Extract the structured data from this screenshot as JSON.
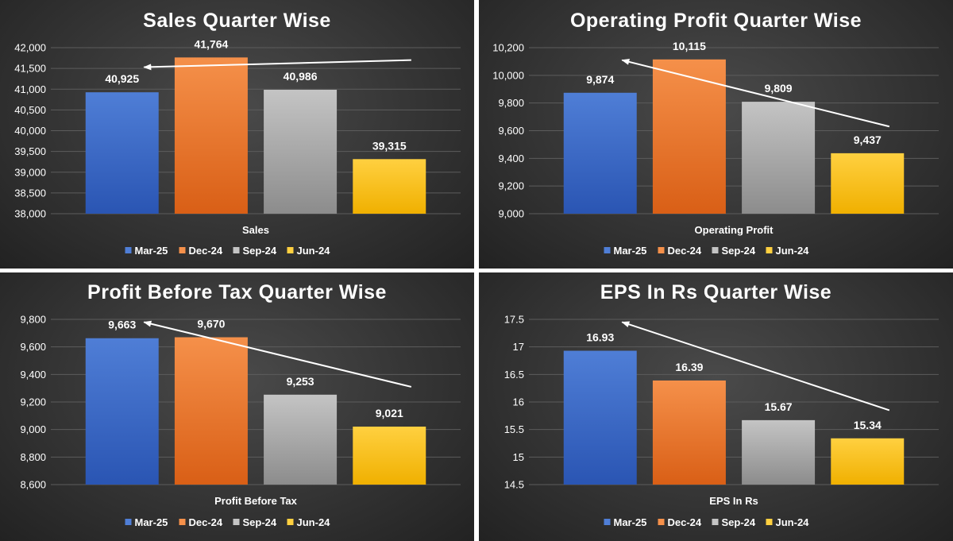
{
  "legend_categories": [
    "Mar-25",
    "Dec-24",
    "Sep-24",
    "Jun-24"
  ],
  "colors": {
    "Mar-25": [
      "#4f7ed6",
      "#2a55b3"
    ],
    "Dec-24": [
      "#f5904a",
      "#d95f16"
    ],
    "Sep-24": [
      "#c4c4c4",
      "#8c8c8c"
    ],
    "Jun-24": [
      "#ffd040",
      "#f0b000"
    ]
  },
  "chart_data": [
    {
      "type": "bar",
      "title": "Sales Quarter Wise",
      "xlabel": "Sales",
      "categories": [
        "Mar-25",
        "Dec-24",
        "Sep-24",
        "Jun-24"
      ],
      "values": [
        40925,
        41764,
        40986,
        39315
      ],
      "value_labels": [
        "40,925",
        "41,764",
        "40,986",
        "39,315"
      ],
      "ylim": [
        38000,
        42000
      ],
      "yticks": [
        38000,
        38500,
        39000,
        39500,
        40000,
        40500,
        41000,
        41500,
        42000
      ],
      "ytick_labels": [
        "38,000",
        "38,500",
        "39,000",
        "39,500",
        "40,000",
        "40,500",
        "41,000",
        "41,500",
        "42,000"
      ],
      "trend_arrow": {
        "from": [
          "Jun-24",
          41700
        ],
        "to": [
          "Mar-25",
          41530
        ]
      },
      "grid": true,
      "legend": "bottom"
    },
    {
      "type": "bar",
      "title": "Operating Profit Quarter Wise",
      "xlabel": "Operating Profit",
      "categories": [
        "Mar-25",
        "Dec-24",
        "Sep-24",
        "Jun-24"
      ],
      "values": [
        9874,
        10115,
        9809,
        9437
      ],
      "value_labels": [
        "9,874",
        "10,115",
        "9,809",
        "9,437"
      ],
      "ylim": [
        9000,
        10200
      ],
      "yticks": [
        9000,
        9200,
        9400,
        9600,
        9800,
        10000,
        10200
      ],
      "ytick_labels": [
        "9,000",
        "9,200",
        "9,400",
        "9,600",
        "9,800",
        "10,000",
        "10,200"
      ],
      "trend_arrow": {
        "from": [
          "Jun-24",
          9630
        ],
        "to": [
          "Mar-25",
          10110
        ]
      },
      "grid": true,
      "legend": "bottom"
    },
    {
      "type": "bar",
      "title": "Profit Before Tax Quarter Wise",
      "xlabel": "Profit Before Tax",
      "categories": [
        "Mar-25",
        "Dec-24",
        "Sep-24",
        "Jun-24"
      ],
      "values": [
        9663,
        9670,
        9253,
        9021
      ],
      "value_labels": [
        "9,663",
        "9,670",
        "9,253",
        "9,021"
      ],
      "ylim": [
        8600,
        9800
      ],
      "yticks": [
        8600,
        8800,
        9000,
        9200,
        9400,
        9600,
        9800
      ],
      "ytick_labels": [
        "8,600",
        "8,800",
        "9,000",
        "9,200",
        "9,400",
        "9,600",
        "9,800"
      ],
      "trend_arrow": {
        "from": [
          "Jun-24",
          9310
        ],
        "to": [
          "Mar-25",
          9780
        ]
      },
      "grid": true,
      "legend": "bottom"
    },
    {
      "type": "bar",
      "title": "EPS In Rs Quarter Wise",
      "xlabel": "EPS In Rs",
      "categories": [
        "Mar-25",
        "Dec-24",
        "Sep-24",
        "Jun-24"
      ],
      "values": [
        16.93,
        16.39,
        15.67,
        15.34
      ],
      "value_labels": [
        "16.93",
        "16.39",
        "15.67",
        "15.34"
      ],
      "ylim": [
        14.5,
        17.5
      ],
      "yticks": [
        14.5,
        15,
        15.5,
        16,
        16.5,
        17,
        17.5
      ],
      "ytick_labels": [
        "14.5",
        "15",
        "15.5",
        "16",
        "16.5",
        "17",
        "17.5"
      ],
      "trend_arrow": {
        "from": [
          "Jun-24",
          15.85
        ],
        "to": [
          "Mar-25",
          17.45
        ]
      },
      "grid": true,
      "legend": "bottom"
    }
  ]
}
